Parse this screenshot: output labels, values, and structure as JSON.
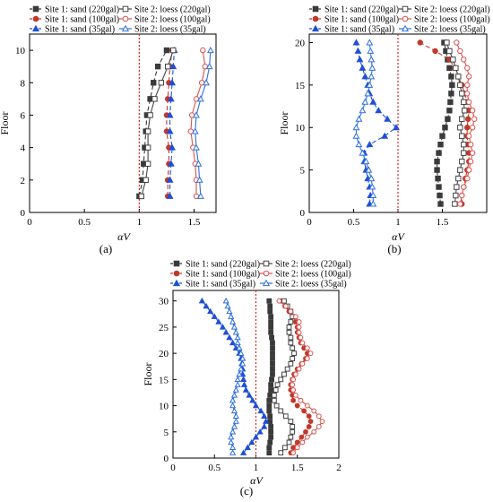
{
  "chart_data": [
    {
      "type": "line",
      "panel_label": "(a)",
      "xlabel": "αV",
      "ylabel": "Floor",
      "xlim": [
        0,
        1.7
      ],
      "ylim": [
        0,
        11
      ],
      "xticks": [
        "0",
        "0.5",
        "1",
        "1.5"
      ],
      "yticks": [
        "0",
        "2",
        "4",
        "6",
        "8",
        "10"
      ],
      "reference_line_x": 1.0,
      "legend_position": "top",
      "series": [
        {
          "name": "Site 1: sand (220gal)",
          "x": [
            1.0,
            1.03,
            1.04,
            1.05,
            1.06,
            1.07,
            1.1,
            1.13,
            1.17,
            1.25
          ],
          "y": [
            1,
            2,
            3,
            4,
            5,
            6,
            7,
            8,
            9,
            10
          ]
        },
        {
          "name": "Site 1: sand (100gal)",
          "x": [
            1.26,
            1.26,
            1.27,
            1.27,
            1.25,
            1.25,
            1.26,
            1.27,
            1.28,
            1.3
          ],
          "y": [
            1,
            2,
            3,
            4,
            5,
            6,
            7,
            8,
            9,
            10
          ]
        },
        {
          "name": "Site 1: sand (35gal)",
          "x": [
            1.28,
            1.28,
            1.29,
            1.3,
            1.28,
            1.28,
            1.29,
            1.3,
            1.31,
            1.32
          ],
          "y": [
            1,
            2,
            3,
            4,
            5,
            6,
            7,
            8,
            9,
            10
          ]
        },
        {
          "name": "Site 2: loess (220gal)",
          "x": [
            1.02,
            1.06,
            1.08,
            1.08,
            1.08,
            1.1,
            1.14,
            1.2,
            1.26,
            1.31
          ],
          "y": [
            1,
            2,
            3,
            4,
            5,
            6,
            7,
            8,
            9,
            10
          ]
        },
        {
          "name": "Site 2: loess (100gal)",
          "x": [
            1.52,
            1.52,
            1.51,
            1.49,
            1.47,
            1.48,
            1.52,
            1.57,
            1.6,
            1.58
          ],
          "y": [
            1,
            2,
            3,
            4,
            5,
            6,
            7,
            8,
            9,
            10
          ]
        },
        {
          "name": "Site 2: loess (35gal)",
          "x": [
            1.56,
            1.55,
            1.54,
            1.52,
            1.51,
            1.52,
            1.56,
            1.61,
            1.64,
            1.65
          ],
          "y": [
            1,
            2,
            3,
            4,
            5,
            6,
            7,
            8,
            9,
            10
          ]
        }
      ]
    },
    {
      "type": "line",
      "panel_label": "(b)",
      "xlabel": "αV",
      "ylabel": "Floor",
      "xlim": [
        0,
        2.0
      ],
      "ylim": [
        0,
        21
      ],
      "xticks": [
        "0",
        "0.5",
        "1",
        "1.5"
      ],
      "yticks": [
        "0",
        "5",
        "10",
        "15",
        "20"
      ],
      "reference_line_x": 1.0,
      "legend_position": "top",
      "series": [
        {
          "name": "Site 1: sand (220gal)",
          "x": [
            1.48,
            1.47,
            1.46,
            1.45,
            1.44,
            1.44,
            1.46,
            1.48,
            1.5,
            1.53,
            1.56,
            1.58,
            1.59,
            1.6,
            1.61,
            1.6,
            1.58,
            1.56,
            1.54,
            1.52
          ],
          "y": [
            1,
            2,
            3,
            4,
            5,
            6,
            7,
            8,
            9,
            10,
            11,
            12,
            13,
            14,
            15,
            16,
            17,
            18,
            19,
            20
          ]
        },
        {
          "name": "Site 1: sand (100gal)",
          "x": [
            1.72,
            1.72,
            1.74,
            1.76,
            1.78,
            1.8,
            1.8,
            1.79,
            1.78,
            1.78,
            1.79,
            1.8,
            1.78,
            1.75,
            1.72,
            1.68,
            1.64,
            1.58,
            1.42,
            1.25
          ],
          "y": [
            1,
            2,
            3,
            4,
            5,
            6,
            7,
            8,
            9,
            10,
            11,
            12,
            13,
            14,
            15,
            16,
            17,
            18,
            19,
            20
          ]
        },
        {
          "name": "Site 1: sand (35gal)",
          "x": [
            0.68,
            0.69,
            0.68,
            0.66,
            0.64,
            0.62,
            0.62,
            0.68,
            0.85,
            0.98,
            0.88,
            0.78,
            0.72,
            0.68,
            0.66,
            0.63,
            0.6,
            0.57,
            0.55,
            0.53
          ],
          "y": [
            1,
            2,
            3,
            4,
            5,
            6,
            7,
            8,
            9,
            10,
            11,
            12,
            13,
            14,
            15,
            16,
            17,
            18,
            19,
            20
          ]
        },
        {
          "name": "Site 2: loess (220gal)",
          "x": [
            1.64,
            1.65,
            1.66,
            1.68,
            1.7,
            1.72,
            1.74,
            1.74,
            1.72,
            1.7,
            1.72,
            1.75,
            1.74,
            1.72,
            1.7,
            1.68,
            1.65,
            1.62,
            1.58,
            1.55
          ],
          "y": [
            1,
            2,
            3,
            4,
            5,
            6,
            7,
            8,
            9,
            10,
            11,
            12,
            13,
            14,
            15,
            16,
            17,
            18,
            19,
            20
          ]
        },
        {
          "name": "Site 2: loess (100gal)",
          "x": [
            1.7,
            1.72,
            1.74,
            1.78,
            1.8,
            1.82,
            1.84,
            1.82,
            1.8,
            1.84,
            1.86,
            1.84,
            1.8,
            1.78,
            1.78,
            1.8,
            1.78,
            1.74,
            1.7,
            1.66
          ],
          "y": [
            1,
            2,
            3,
            4,
            5,
            6,
            7,
            8,
            9,
            10,
            11,
            12,
            13,
            14,
            15,
            16,
            17,
            18,
            19,
            20
          ]
        },
        {
          "name": "Site 2: loess (35gal)",
          "x": [
            0.72,
            0.72,
            0.71,
            0.7,
            0.67,
            0.64,
            0.6,
            0.56,
            0.53,
            0.53,
            0.56,
            0.6,
            0.63,
            0.66,
            0.68,
            0.7,
            0.71,
            0.7,
            0.69,
            0.68
          ],
          "y": [
            1,
            2,
            3,
            4,
            5,
            6,
            7,
            8,
            9,
            10,
            11,
            12,
            13,
            14,
            15,
            16,
            17,
            18,
            19,
            20
          ]
        }
      ]
    },
    {
      "type": "line",
      "panel_label": "(c)",
      "xlabel": "αV",
      "ylabel": "Floor",
      "xlim": [
        0,
        2.0
      ],
      "ylim": [
        0,
        32
      ],
      "xticks": [
        "0",
        "0.5",
        "1",
        "1.5",
        "2"
      ],
      "yticks": [
        "0",
        "5",
        "10",
        "15",
        "20",
        "25",
        "30"
      ],
      "reference_line_x": 1.0,
      "legend_position": "top",
      "series": [
        {
          "name": "Site 1: sand (220gal)",
          "x": [
            1.16,
            1.16,
            1.17,
            1.18,
            1.18,
            1.18,
            1.17,
            1.17,
            1.16,
            1.16,
            1.16,
            1.17,
            1.18,
            1.18,
            1.19,
            1.2,
            1.2,
            1.2,
            1.2,
            1.2,
            1.2,
            1.2,
            1.19,
            1.18,
            1.18,
            1.18,
            1.18,
            1.17,
            1.17,
            1.16
          ],
          "y": [
            1,
            2,
            3,
            4,
            5,
            6,
            7,
            8,
            9,
            10,
            11,
            12,
            13,
            14,
            15,
            16,
            17,
            18,
            19,
            20,
            21,
            22,
            23,
            24,
            25,
            26,
            27,
            28,
            29,
            30
          ]
        },
        {
          "name": "Site 1: sand (100gal)",
          "x": [
            1.42,
            1.45,
            1.5,
            1.55,
            1.6,
            1.64,
            1.66,
            1.64,
            1.58,
            1.5,
            1.45,
            1.44,
            1.42,
            1.42,
            1.44,
            1.46,
            1.5,
            1.55,
            1.6,
            1.62,
            1.58,
            1.54,
            1.52,
            1.5,
            1.5,
            1.48,
            1.45,
            1.4,
            1.35,
            1.3
          ],
          "y": [
            1,
            2,
            3,
            4,
            5,
            6,
            7,
            8,
            9,
            10,
            11,
            12,
            13,
            14,
            15,
            16,
            17,
            18,
            19,
            20,
            21,
            22,
            23,
            24,
            25,
            26,
            27,
            28,
            29,
            30
          ]
        },
        {
          "name": "Site 1: sand (35gal)",
          "x": [
            0.85,
            0.9,
            0.95,
            1.0,
            1.05,
            1.1,
            1.12,
            1.1,
            1.06,
            1.0,
            0.96,
            0.92,
            0.88,
            0.86,
            0.85,
            0.84,
            0.84,
            0.83,
            0.82,
            0.8,
            0.76,
            0.72,
            0.68,
            0.64,
            0.6,
            0.55,
            0.5,
            0.45,
            0.4,
            0.35
          ],
          "y": [
            1,
            2,
            3,
            4,
            5,
            6,
            7,
            8,
            9,
            10,
            11,
            12,
            13,
            14,
            15,
            16,
            17,
            18,
            19,
            20,
            21,
            22,
            23,
            24,
            25,
            26,
            27,
            28,
            29,
            30
          ]
        },
        {
          "name": "Site 2: loess (220gal)",
          "x": [
            1.3,
            1.35,
            1.4,
            1.42,
            1.44,
            1.44,
            1.42,
            1.36,
            1.3,
            1.25,
            1.22,
            1.22,
            1.24,
            1.26,
            1.3,
            1.34,
            1.38,
            1.42,
            1.44,
            1.46,
            1.44,
            1.42,
            1.42,
            1.4,
            1.4,
            1.42,
            1.44,
            1.42,
            1.38,
            1.34
          ],
          "y": [
            1,
            2,
            3,
            4,
            5,
            6,
            7,
            8,
            9,
            10,
            11,
            12,
            13,
            14,
            15,
            16,
            17,
            18,
            19,
            20,
            21,
            22,
            23,
            24,
            25,
            26,
            27,
            28,
            29,
            30
          ]
        },
        {
          "name": "Site 2: loess (100gal)",
          "x": [
            1.45,
            1.5,
            1.56,
            1.62,
            1.7,
            1.76,
            1.8,
            1.76,
            1.7,
            1.62,
            1.54,
            1.48,
            1.45,
            1.44,
            1.45,
            1.48,
            1.52,
            1.56,
            1.62,
            1.66,
            1.62,
            1.56,
            1.54,
            1.52,
            1.52,
            1.52,
            1.48,
            1.42,
            1.36,
            1.28
          ],
          "y": [
            1,
            2,
            3,
            4,
            5,
            6,
            7,
            8,
            9,
            10,
            11,
            12,
            13,
            14,
            15,
            16,
            17,
            18,
            19,
            20,
            21,
            22,
            23,
            24,
            25,
            26,
            27,
            28,
            29,
            30
          ]
        },
        {
          "name": "Site 2: loess (35gal)",
          "x": [
            0.72,
            0.72,
            0.7,
            0.7,
            0.72,
            0.74,
            0.76,
            0.76,
            0.74,
            0.72,
            0.72,
            0.74,
            0.76,
            0.78,
            0.78,
            0.8,
            0.82,
            0.84,
            0.84,
            0.82,
            0.8,
            0.78,
            0.78,
            0.76,
            0.74,
            0.72,
            0.7,
            0.68,
            0.66,
            0.64
          ],
          "y": [
            1,
            2,
            3,
            4,
            5,
            6,
            7,
            8,
            9,
            10,
            11,
            12,
            13,
            14,
            15,
            16,
            17,
            18,
            19,
            20,
            21,
            22,
            23,
            24,
            25,
            26,
            27,
            28,
            29,
            30
          ]
        }
      ]
    }
  ],
  "styles": [
    {
      "color": "#3a3a3a",
      "marker": "square",
      "fill": true,
      "dash": "5,3"
    },
    {
      "color": "#c0392b",
      "marker": "circle",
      "fill": true,
      "dash": "5,3"
    },
    {
      "color": "#1f4fd6",
      "marker": "triangle",
      "fill": true,
      "dash": "5,3"
    },
    {
      "color": "#444444",
      "marker": "square",
      "fill": false,
      "dash": ""
    },
    {
      "color": "#d9534f",
      "marker": "circle",
      "fill": false,
      "dash": ""
    },
    {
      "color": "#2f6fdf",
      "marker": "triangle",
      "fill": false,
      "dash": ""
    }
  ],
  "reference_line_color": "#d62728"
}
